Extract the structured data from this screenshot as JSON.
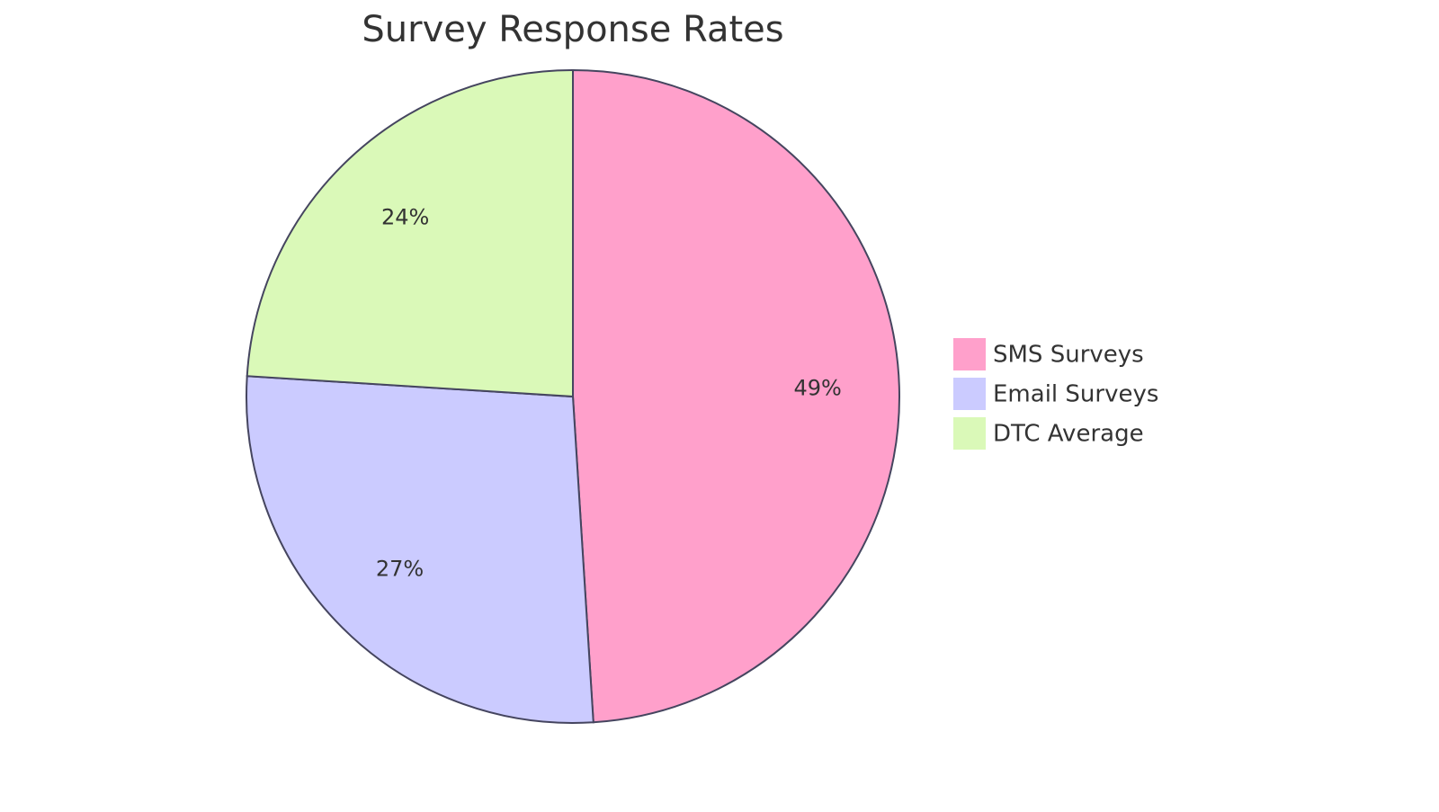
{
  "chart_data": {
    "type": "pie",
    "title": "Survey Response Rates",
    "categories": [
      "SMS Surveys",
      "Email Surveys",
      "DTC Average"
    ],
    "values": [
      49,
      27,
      24
    ],
    "value_labels": [
      "49%",
      "27%",
      "24%"
    ],
    "colors": [
      "#FFA0CB",
      "#CBCBFF",
      "#DAF9B8"
    ],
    "legend": "right"
  }
}
